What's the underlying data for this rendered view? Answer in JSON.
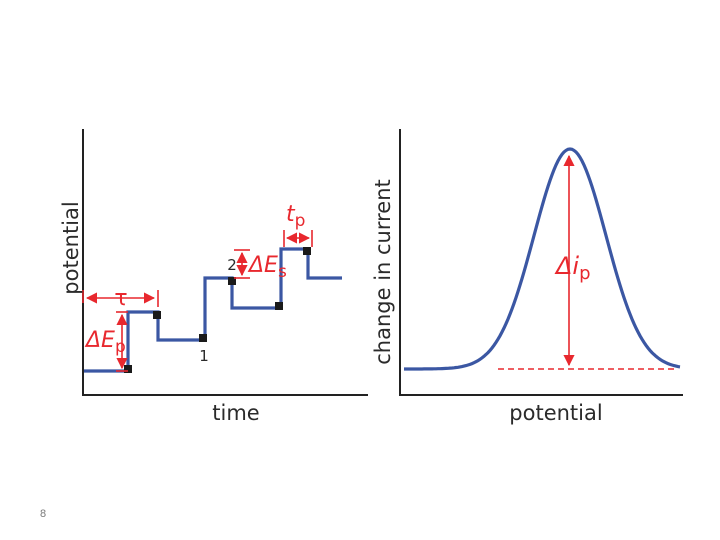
{
  "slide_number": "8",
  "colors": {
    "trace": "#3b57a3",
    "annotation": "#e8282e",
    "axis": "#222222"
  },
  "left_panel": {
    "xlabel": "time",
    "ylabel": "potential",
    "labels": {
      "tau": "τ",
      "delta_Ep_symbol": "ΔE",
      "delta_Ep_sub": "p",
      "delta_Es_symbol": "ΔE",
      "delta_Es_sub": "s",
      "tp_symbol": "t",
      "tp_sub": "p",
      "point_1": "1",
      "point_2": "2"
    }
  },
  "right_panel": {
    "xlabel": "potential",
    "ylabel": "change in current",
    "labels": {
      "delta_ip_symbol": "Δi",
      "delta_ip_sub": "p"
    }
  }
}
